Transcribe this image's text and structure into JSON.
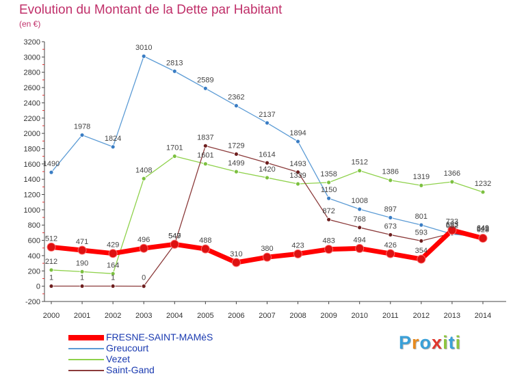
{
  "title": "Evolution du Montant de la Dette par Habitant",
  "unit": "(en €)",
  "brand": {
    "text": "Proxiti",
    "letters": [
      {
        "ch": "P",
        "color": "#3aa0d8"
      },
      {
        "ch": "r",
        "color": "#e88a1e"
      },
      {
        "ch": "o",
        "color": "#3aa0d8"
      },
      {
        "ch": "x",
        "color": "#e0362d"
      },
      {
        "ch": "i",
        "color": "#8dc63f"
      },
      {
        "ch": "t",
        "color": "#3aa0d8"
      },
      {
        "ch": "i",
        "color": "#8dc63f"
      }
    ]
  },
  "chart_data": {
    "type": "line",
    "title": "Evolution du Montant de la Dette par Habitant",
    "ylabel": "(en €)",
    "x": [
      2000,
      2001,
      2002,
      2003,
      2004,
      2005,
      2006,
      2007,
      2008,
      2009,
      2010,
      2011,
      2012,
      2013,
      2014
    ],
    "ylim": [
      -200,
      3200
    ],
    "yticks": [
      -200,
      0,
      200,
      400,
      600,
      800,
      1000,
      1200,
      1400,
      1600,
      1800,
      2000,
      2200,
      2400,
      2600,
      2800,
      3000,
      3200
    ],
    "grid": false,
    "legend": "bottom-left",
    "series": [
      {
        "name": "FRESNE-SAINT-MAMèS",
        "color": "#ff0000",
        "marker": "#dd1111",
        "values": [
          512,
          471,
          429,
          496,
          549,
          488,
          310,
          380,
          423,
          483,
          494,
          426,
          354,
          733,
          628
        ],
        "labels": [
          "512",
          "471",
          "429",
          "496",
          "549",
          "488",
          "310",
          "380",
          "423",
          "483",
          "494",
          "426",
          "354",
          "733",
          "628"
        ]
      },
      {
        "name": "Greucourt",
        "color": "#5b9bd5",
        "marker": "#3a7dc4",
        "values": [
          1490,
          1978,
          1824,
          3010,
          2813,
          2589,
          2362,
          2137,
          1894,
          1150,
          1008,
          897,
          801,
          682,
          643
        ],
        "labels": [
          "1490",
          "1978",
          "1824",
          "3010",
          "2813",
          "2589",
          "2362",
          "2137",
          "1894",
          "1150",
          "1008",
          "897",
          "801",
          "682",
          "643"
        ]
      },
      {
        "name": "Vezet",
        "color": "#8ed14a",
        "marker": "#7cc040",
        "values": [
          212,
          190,
          164,
          1408,
          1701,
          1601,
          1499,
          1420,
          1339,
          1358,
          1512,
          1386,
          1319,
          1366,
          1232
        ],
        "labels": [
          "212",
          "190",
          "164",
          "1408",
          "1701",
          "1601",
          "1499",
          "1420",
          "1339",
          "1358",
          "1512",
          "1386",
          "1319",
          "1366",
          "1232"
        ]
      },
      {
        "name": "Saint-Gand",
        "color": "#8b3a3a",
        "marker": "#6e1f1f",
        "values": [
          1,
          1,
          1,
          0,
          547,
          1837,
          1729,
          1614,
          1493,
          872,
          768,
          673,
          593,
          693,
          649
        ],
        "labels": [
          "1",
          "1",
          "1",
          "0",
          "547",
          "1837",
          "1729",
          "1614",
          "1493",
          "872",
          "768",
          "673",
          "593",
          "693",
          "649"
        ]
      }
    ]
  }
}
